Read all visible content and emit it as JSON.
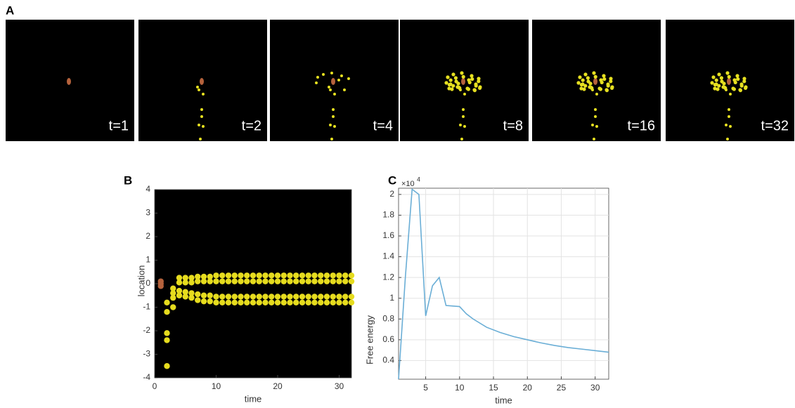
{
  "panel_labels": [
    "A",
    "B",
    "C"
  ],
  "frames": [
    "t=1",
    "t=2",
    "t=4",
    "t=8",
    "t=16",
    "t=32"
  ],
  "chart_data": [
    {
      "type": "scatter",
      "xlabel": "time",
      "ylabel": "location",
      "xlim": [
        0,
        32
      ],
      "xticks": [
        0,
        10,
        20,
        30
      ],
      "ylim": [
        -4,
        4
      ],
      "yticks": [
        -4,
        -3,
        -2,
        -1,
        0,
        1,
        2,
        3,
        4
      ],
      "background": "#000000",
      "series": [
        {
          "color": "#b5623c",
          "x": [
            1,
            1,
            1
          ],
          "y": [
            0.1,
            0,
            -0.1
          ]
        },
        {
          "color": "#e6dc1e",
          "x": [
            2,
            2,
            2,
            2,
            2,
            3,
            3,
            3,
            3,
            4,
            4,
            4,
            4,
            5,
            5,
            5,
            5,
            6,
            6,
            6,
            6,
            7,
            7,
            7,
            7,
            8,
            8,
            8,
            8,
            9,
            9,
            9,
            9,
            10,
            10,
            10,
            10,
            11,
            11,
            11,
            11,
            12,
            12,
            12,
            12,
            13,
            13,
            13,
            13,
            14,
            14,
            14,
            14,
            15,
            15,
            15,
            15,
            16,
            16,
            16,
            16,
            17,
            17,
            17,
            17,
            18,
            18,
            18,
            18,
            19,
            19,
            19,
            19,
            20,
            20,
            20,
            20,
            21,
            21,
            21,
            21,
            22,
            22,
            22,
            22,
            23,
            23,
            23,
            23,
            24,
            24,
            24,
            24,
            25,
            25,
            25,
            25,
            26,
            26,
            26,
            26,
            27,
            27,
            27,
            27,
            28,
            28,
            28,
            28,
            29,
            29,
            29,
            29,
            30,
            30,
            30,
            30,
            31,
            31,
            31,
            31,
            32,
            32,
            32,
            32
          ],
          "y": [
            -0.8,
            -1.2,
            -2.1,
            -2.4,
            -3.5,
            -0.2,
            -0.4,
            -0.6,
            -1.0,
            0.25,
            0.05,
            -0.3,
            -0.5,
            0.25,
            0.05,
            -0.35,
            -0.55,
            0.25,
            0.05,
            -0.4,
            -0.6,
            0.3,
            0.1,
            -0.45,
            -0.7,
            0.3,
            0.1,
            -0.5,
            -0.75,
            0.3,
            0.1,
            -0.5,
            -0.75,
            0.35,
            0.1,
            -0.55,
            -0.8,
            0.35,
            0.1,
            -0.55,
            -0.8,
            0.35,
            0.1,
            -0.55,
            -0.8,
            0.35,
            0.1,
            -0.55,
            -0.8,
            0.35,
            0.1,
            -0.55,
            -0.8,
            0.35,
            0.1,
            -0.55,
            -0.8,
            0.35,
            0.1,
            -0.55,
            -0.8,
            0.35,
            0.1,
            -0.55,
            -0.8,
            0.35,
            0.1,
            -0.55,
            -0.8,
            0.35,
            0.1,
            -0.55,
            -0.8,
            0.35,
            0.1,
            -0.55,
            -0.8,
            0.35,
            0.1,
            -0.55,
            -0.8,
            0.35,
            0.1,
            -0.55,
            -0.8,
            0.35,
            0.1,
            -0.55,
            -0.8,
            0.35,
            0.1,
            -0.55,
            -0.8,
            0.35,
            0.1,
            -0.55,
            -0.8,
            0.35,
            0.1,
            -0.55,
            -0.8,
            0.35,
            0.1,
            -0.55,
            -0.8,
            0.35,
            0.1,
            -0.55,
            -0.8,
            0.35,
            0.1,
            -0.55,
            -0.8,
            0.35,
            0.1,
            -0.55,
            -0.8,
            0.35,
            0.1,
            -0.55,
            -0.8,
            0.35,
            0.1,
            -0.55,
            -0.8
          ]
        }
      ]
    },
    {
      "type": "line",
      "xlabel": "time",
      "ylabel": "Free energy",
      "scale_label": {
        "base": "×10",
        "exponent": "4"
      },
      "xlim": [
        1,
        32
      ],
      "xticks": [
        5,
        10,
        15,
        20,
        25,
        30
      ],
      "ylim": [
        0.22,
        2.06
      ],
      "yticks": [
        0.4,
        0.6,
        0.8,
        1,
        1.2,
        1.4,
        1.6,
        1.8,
        2
      ],
      "grid": true,
      "series": [
        {
          "color": "#6aaed6",
          "x": [
            1,
            2,
            3,
            4,
            5,
            6,
            7,
            8,
            10,
            11,
            12,
            14,
            16,
            18,
            20,
            22,
            24,
            26,
            28,
            30,
            32
          ],
          "y": [
            0.22,
            1.2,
            2.05,
            2.0,
            0.83,
            1.12,
            1.2,
            0.93,
            0.92,
            0.85,
            0.8,
            0.72,
            0.67,
            0.63,
            0.6,
            0.57,
            0.545,
            0.525,
            0.51,
            0.495,
            0.48
          ]
        }
      ]
    }
  ]
}
